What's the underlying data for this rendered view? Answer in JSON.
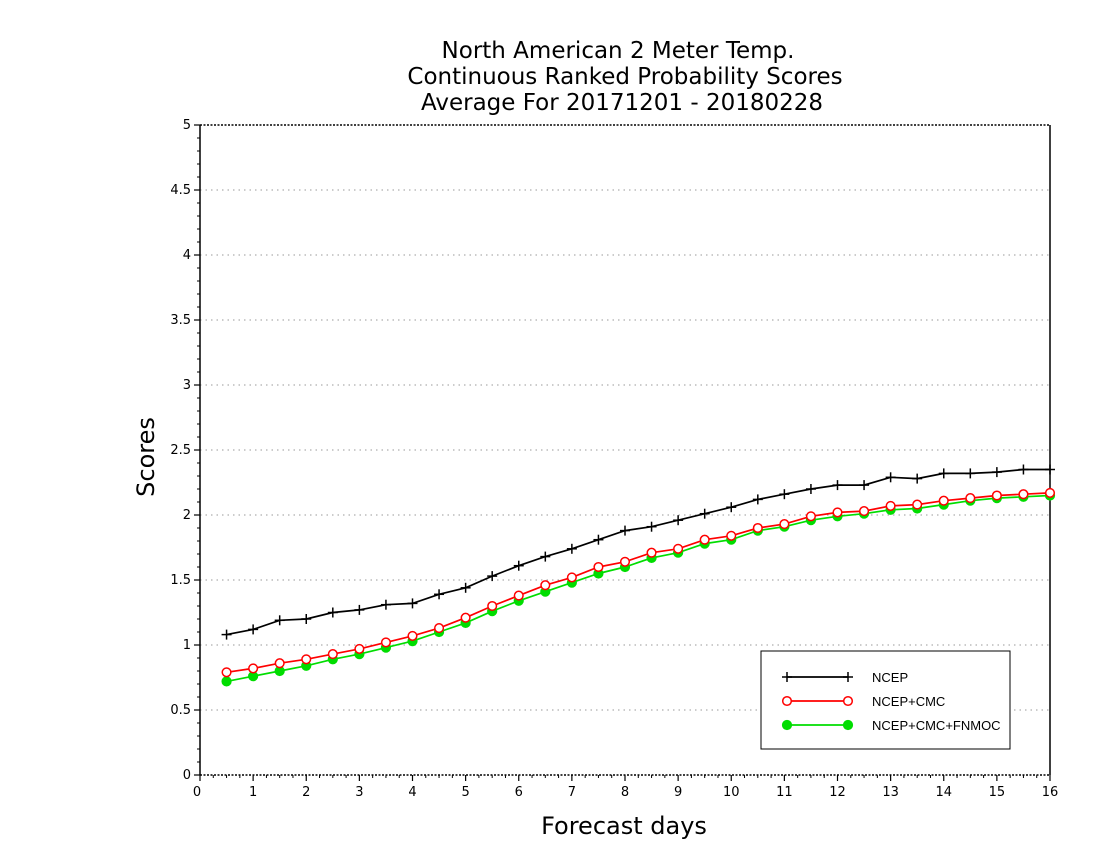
{
  "chart_data": {
    "type": "line",
    "title": [
      "North American 2 Meter Temp.",
      "Continuous Ranked Probability Scores",
      "Average For 20171201 - 20180228"
    ],
    "xlabel": "Forecast days",
    "ylabel": "Scores",
    "xlim": [
      0,
      16
    ],
    "ylim": [
      0,
      5
    ],
    "xticks": [
      "0",
      "1",
      "2",
      "3",
      "4",
      "5",
      "6",
      "7",
      "8",
      "9",
      "10",
      "11",
      "12",
      "13",
      "14",
      "15",
      "16"
    ],
    "yticks": [
      "0",
      "0.5",
      "1",
      "1.5",
      "2",
      "2.5",
      "3",
      "3.5",
      "4",
      "4.5",
      "5"
    ],
    "grid": true,
    "legend_position": "bottom-right",
    "x": [
      0.5,
      1,
      1.5,
      2,
      2.5,
      3,
      3.5,
      4,
      4.5,
      5,
      5.5,
      6,
      6.5,
      7,
      7.5,
      8,
      8.5,
      9,
      9.5,
      10,
      10.5,
      11,
      11.5,
      12,
      12.5,
      13,
      13.5,
      14,
      14.5,
      15,
      15.5,
      16
    ],
    "series": [
      {
        "name": "NCEP",
        "color": "#000000",
        "marker": "plus",
        "values": [
          1.08,
          1.12,
          1.19,
          1.2,
          1.25,
          1.27,
          1.31,
          1.32,
          1.39,
          1.44,
          1.53,
          1.61,
          1.68,
          1.74,
          1.81,
          1.88,
          1.91,
          1.96,
          2.01,
          2.06,
          2.12,
          2.16,
          2.2,
          2.23,
          2.23,
          2.29,
          2.28,
          2.32,
          2.32,
          2.33,
          2.35,
          2.35
        ]
      },
      {
        "name": "NCEP+CMC",
        "color": "#ff0000",
        "marker": "open-circle",
        "values": [
          0.79,
          0.82,
          0.86,
          0.89,
          0.93,
          0.97,
          1.02,
          1.07,
          1.13,
          1.21,
          1.3,
          1.38,
          1.46,
          1.52,
          1.6,
          1.64,
          1.71,
          1.74,
          1.81,
          1.84,
          1.9,
          1.93,
          1.99,
          2.02,
          2.03,
          2.07,
          2.08,
          2.11,
          2.13,
          2.15,
          2.16,
          2.17
        ]
      },
      {
        "name": "NCEP+CMC+FNMOC",
        "color": "#00dd00",
        "marker": "filled-circle",
        "values": [
          0.72,
          0.76,
          0.8,
          0.84,
          0.89,
          0.93,
          0.98,
          1.03,
          1.1,
          1.17,
          1.26,
          1.34,
          1.41,
          1.48,
          1.55,
          1.6,
          1.67,
          1.71,
          1.78,
          1.81,
          1.88,
          1.91,
          1.96,
          1.99,
          2.01,
          2.04,
          2.05,
          2.08,
          2.11,
          2.13,
          2.14,
          2.15
        ]
      }
    ]
  }
}
